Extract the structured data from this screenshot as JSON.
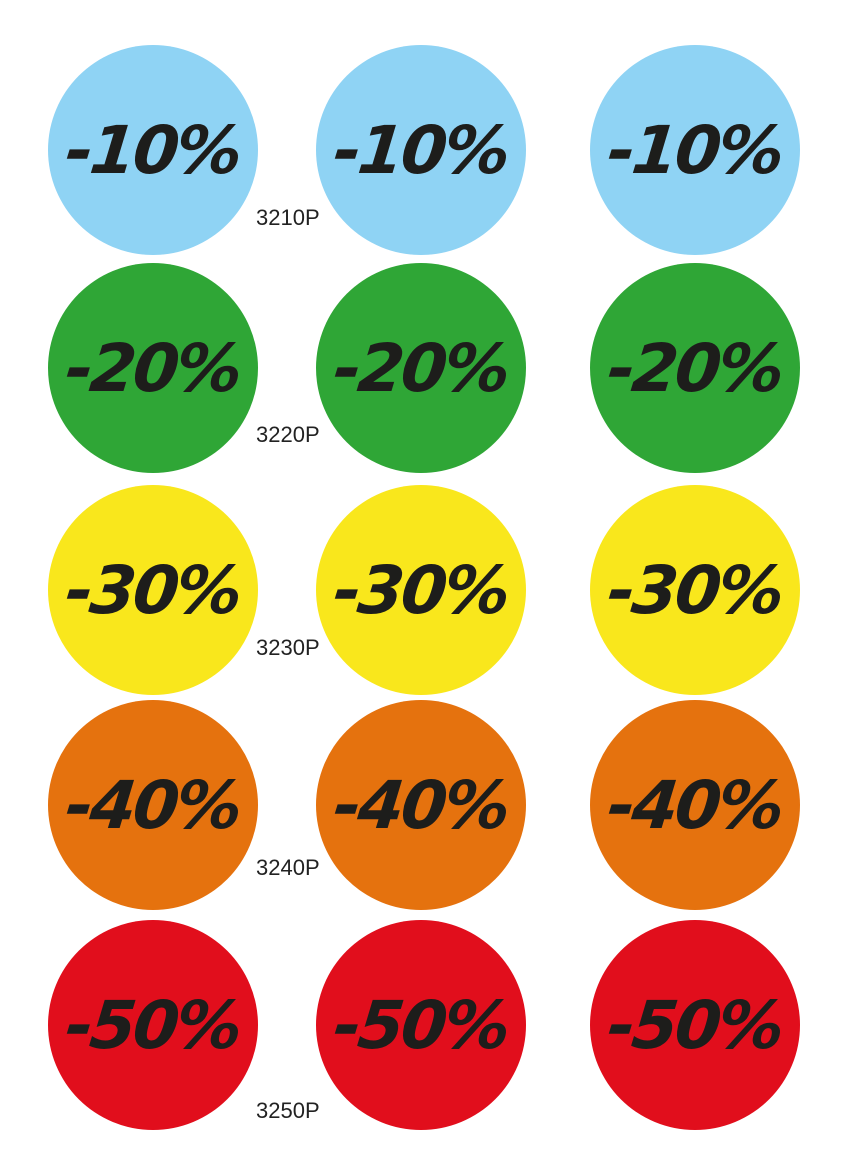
{
  "rows": [
    {
      "label": "-10%",
      "code": "3210P"
    },
    {
      "label": "-20%",
      "code": "3220P"
    },
    {
      "label": "-30%",
      "code": "3230P"
    },
    {
      "label": "-40%",
      "code": "3240P"
    },
    {
      "label": "-50%",
      "code": "3250P"
    }
  ]
}
